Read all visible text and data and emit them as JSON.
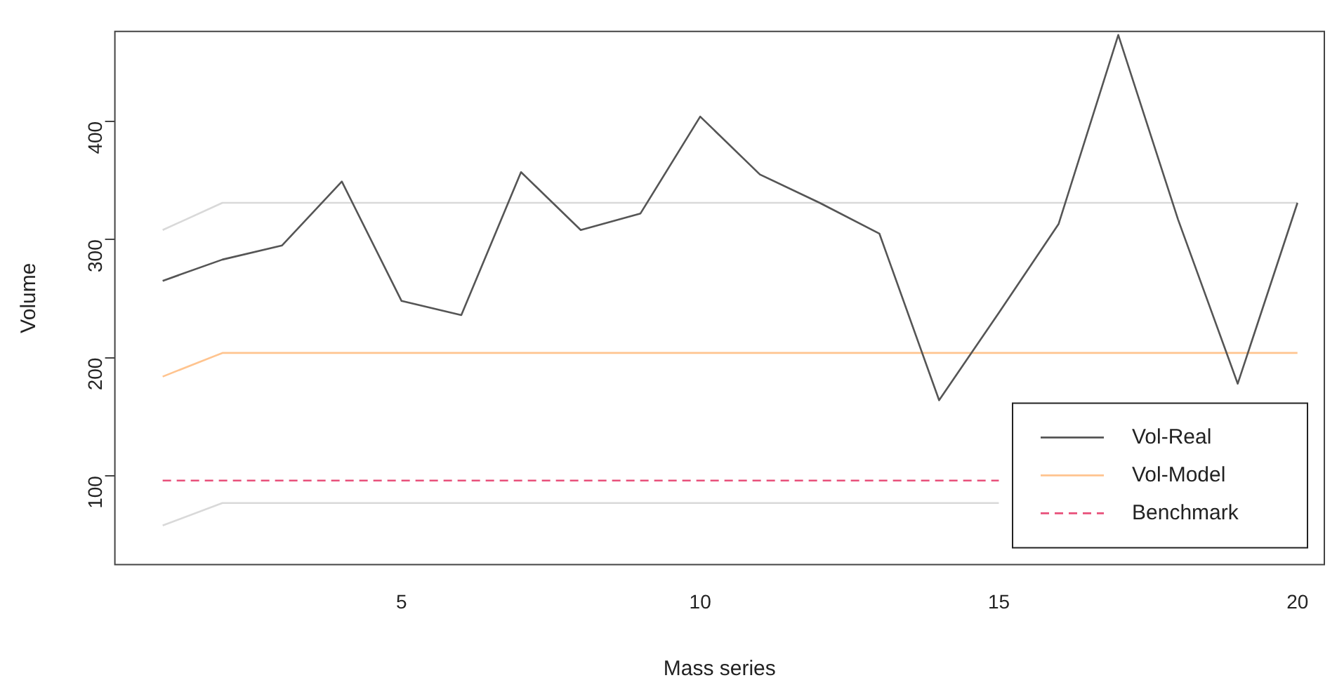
{
  "chart_data": {
    "type": "line",
    "xlabel": "Mass series",
    "ylabel": "Volume",
    "x": [
      1,
      2,
      3,
      4,
      5,
      6,
      7,
      8,
      9,
      10,
      11,
      12,
      13,
      14,
      15,
      16,
      17,
      18,
      19,
      20
    ],
    "series": [
      {
        "color": "#d9d9d9",
        "values": [
          308,
          331,
          331,
          331,
          331,
          331,
          331,
          331,
          331,
          331,
          331,
          331,
          331,
          331,
          331,
          331,
          331,
          331,
          331,
          331
        ]
      },
      {
        "color": "#d9d9d9",
        "values": [
          58,
          77,
          77,
          77,
          77,
          77,
          77,
          77,
          77,
          77,
          77,
          77,
          77,
          77,
          77,
          null,
          null,
          null,
          null,
          null
        ]
      },
      {
        "name": "Vol-Real",
        "color": "#555555",
        "values": [
          265,
          283,
          295,
          349,
          248,
          236,
          357,
          308,
          322,
          404,
          355,
          331,
          305,
          164,
          238,
          313,
          473,
          317,
          178,
          331
        ]
      },
      {
        "name": "Vol-Model",
        "color": "#ffc48f",
        "values": [
          184,
          204,
          204,
          204,
          204,
          204,
          204,
          204,
          204,
          204,
          204,
          204,
          204,
          204,
          204,
          204,
          204,
          204,
          204,
          204
        ]
      },
      {
        "name": "Benchmark",
        "color": "#e8507a",
        "line_style": "dashed",
        "values": [
          96,
          96,
          96,
          96,
          96,
          96,
          96,
          96,
          96,
          96,
          96,
          96,
          96,
          96,
          96,
          null,
          null,
          null,
          null,
          null
        ]
      }
    ],
    "xlim": [
      0.2,
      20.45
    ],
    "xticks": [
      5,
      10,
      15,
      20
    ],
    "ylim": [
      25,
      476
    ],
    "yticks": [
      100,
      200,
      300,
      400
    ],
    "grid": false,
    "legend": "bottom right",
    "marker": "none"
  }
}
